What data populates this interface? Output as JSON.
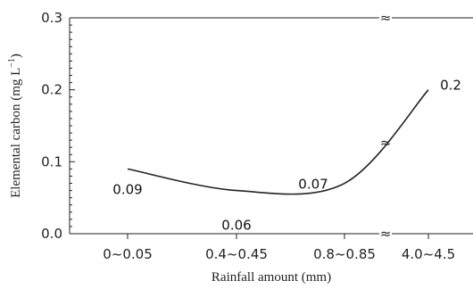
{
  "chart_data": {
    "type": "line",
    "categories": [
      "0~0.05",
      "0.4~0.45",
      "0.8~0.85",
      "4.0~4.5"
    ],
    "values": [
      0.09,
      0.06,
      0.07,
      0.2
    ],
    "data_labels": [
      "0.09",
      "0.06",
      "0.07",
      "0.2"
    ],
    "xlabel": "Rainfall amount (mm)",
    "ylabel": "Elemental carbon (mg L",
    "ylabel_sup": "−1",
    "ylabel_close": ")",
    "ylim": [
      0,
      0.3
    ],
    "yticks": [
      "0.0",
      "0.1",
      "0.2",
      "0.3"
    ],
    "axis_break_mark": "≈",
    "grid": false,
    "legend": "none",
    "line_color": "#222222"
  }
}
